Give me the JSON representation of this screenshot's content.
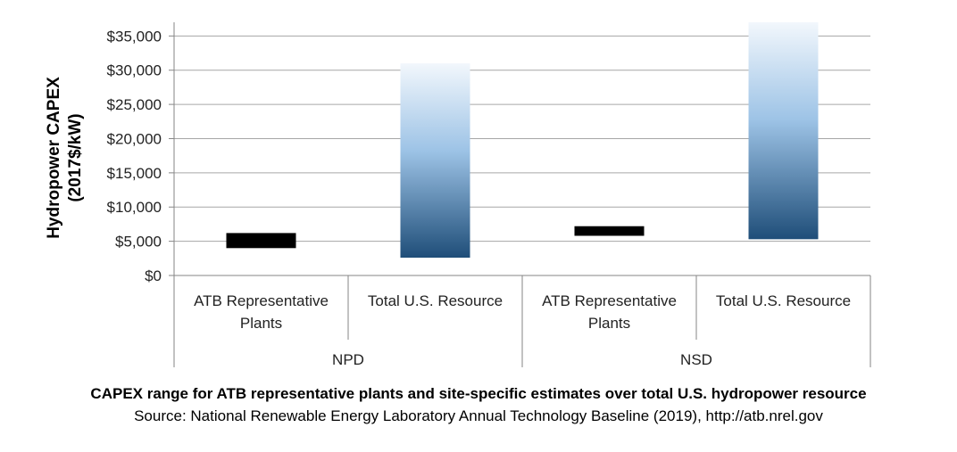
{
  "chart_data": {
    "type": "bar",
    "subtype": "floating-range",
    "ylabel_lines": [
      "Hydropower CAPEX",
      "(2017$/kW)"
    ],
    "ylim": [
      0,
      37000
    ],
    "yticks": [
      0,
      5000,
      10000,
      15000,
      20000,
      25000,
      30000,
      35000
    ],
    "ytick_labels": [
      "$0",
      "$5,000",
      "$10,000",
      "$15,000",
      "$20,000",
      "$25,000",
      "$30,000",
      "$35,000"
    ],
    "grid": true,
    "groups": [
      {
        "name": "NPD",
        "categories": [
          {
            "label_lines": [
              "ATB Representative",
              "Plants"
            ],
            "low": 4000,
            "high": 6200,
            "style": "solid"
          },
          {
            "label_lines": [
              "Total U.S. Resource"
            ],
            "low": 2600,
            "high": 31000,
            "style": "gradient"
          }
        ]
      },
      {
        "name": "NSD",
        "categories": [
          {
            "label_lines": [
              "ATB Representative",
              "Plants"
            ],
            "low": 5800,
            "high": 7200,
            "style": "solid"
          },
          {
            "label_lines": [
              "Total U.S. Resource"
            ],
            "low": 5300,
            "high": 37000,
            "style": "gradient"
          }
        ]
      }
    ],
    "colors": {
      "solid": "#000000",
      "gradient_top": "#f2f7fc",
      "gradient_mid": "#9dc3e6",
      "gradient_bottom": "#1f4e79",
      "grid": "#a6a6a6",
      "axis": "#868686"
    }
  },
  "caption": {
    "title": "CAPEX range for ATB representative plants and site-specific estimates over total U.S. hydropower resource",
    "source": "Source: National Renewable Energy Laboratory Annual Technology Baseline (2019), http://atb.nrel.gov"
  }
}
